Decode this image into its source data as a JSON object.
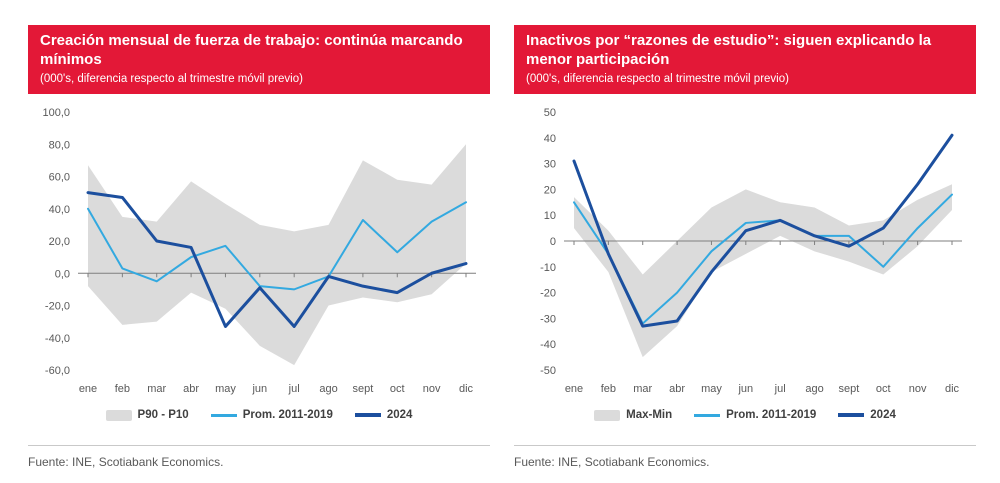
{
  "theme": {
    "banner_red": "#E31837",
    "axis_gray": "#7f7f7f",
    "label_gray": "#595959"
  },
  "chart_data": [
    {
      "type": "line",
      "title": "Creación mensual de fuerza de trabajo:  continúa marcando mínimos",
      "subtitle": "(000's, diferencia respecto al trimestre móvil previo)",
      "categories": [
        "ene",
        "feb",
        "mar",
        "abr",
        "may",
        "jun",
        "jul",
        "ago",
        "sept",
        "oct",
        "nov",
        "dic"
      ],
      "ylim": [
        -60,
        100
      ],
      "ytick_step": 20,
      "ytick_labels": [
        "100,0",
        "80,0",
        "60,0",
        "40,0",
        "20,0",
        "0,0",
        "-20,0",
        "-40,0",
        "-60,0"
      ],
      "band": {
        "name": "P90 - P10",
        "color": "#DBDBDB",
        "upper": [
          67,
          35,
          32,
          57,
          43,
          30,
          26,
          30,
          70,
          58,
          55,
          80
        ],
        "lower": [
          -8,
          -32,
          -30,
          -12,
          -22,
          -45,
          -57,
          -20,
          -15,
          -18,
          -13,
          6
        ]
      },
      "series": [
        {
          "name": "Prom. 2011-2019",
          "color": "#33A9E0",
          "width": 2,
          "values": [
            40,
            3,
            -5,
            10,
            17,
            -8,
            -10,
            -2,
            33,
            13,
            32,
            44
          ]
        },
        {
          "name": "2024",
          "color": "#1C4F9E",
          "width": 3,
          "values": [
            50,
            47,
            20,
            16,
            -33,
            -9,
            -33,
            -2,
            -8,
            -12,
            0,
            6
          ]
        }
      ],
      "legend_position": "bottom",
      "grid": false,
      "source": "Fuente: INE, Scotiabank Economics."
    },
    {
      "type": "line",
      "title": "Inactivos por “razones de estudio”: siguen explicando la menor participación",
      "subtitle": "(000's, diferencia respecto al trimestre móvil previo)",
      "categories": [
        "ene",
        "feb",
        "mar",
        "abr",
        "may",
        "jun",
        "jul",
        "ago",
        "sept",
        "oct",
        "nov",
        "dic"
      ],
      "ylim": [
        -50,
        50
      ],
      "ytick_step": 10,
      "ytick_labels": [
        "50",
        "40",
        "30",
        "20",
        "10",
        "0",
        "-10",
        "-20",
        "-30",
        "-40",
        "-50"
      ],
      "band": {
        "name": "Max-Min",
        "color": "#DBDBDB",
        "upper": [
          17,
          4,
          -13,
          0,
          13,
          20,
          15,
          13,
          6,
          8,
          16,
          22
        ],
        "lower": [
          5,
          -12,
          -45,
          -33,
          -12,
          -5,
          2,
          -4,
          -8,
          -13,
          -2,
          12
        ]
      },
      "series": [
        {
          "name": "Prom. 2011-2019",
          "color": "#33A9E0",
          "width": 2,
          "values": [
            15,
            -5,
            -32,
            -20,
            -4,
            7,
            8,
            2,
            2,
            -10,
            5,
            18
          ]
        },
        {
          "name": "2024",
          "color": "#1C4F9E",
          "width": 3,
          "values": [
            31,
            -5,
            -33,
            -31,
            -12,
            4,
            8,
            2,
            -2,
            5,
            22,
            41
          ]
        }
      ],
      "legend_position": "bottom",
      "grid": false,
      "source": "Fuente: INE, Scotiabank Economics."
    }
  ]
}
